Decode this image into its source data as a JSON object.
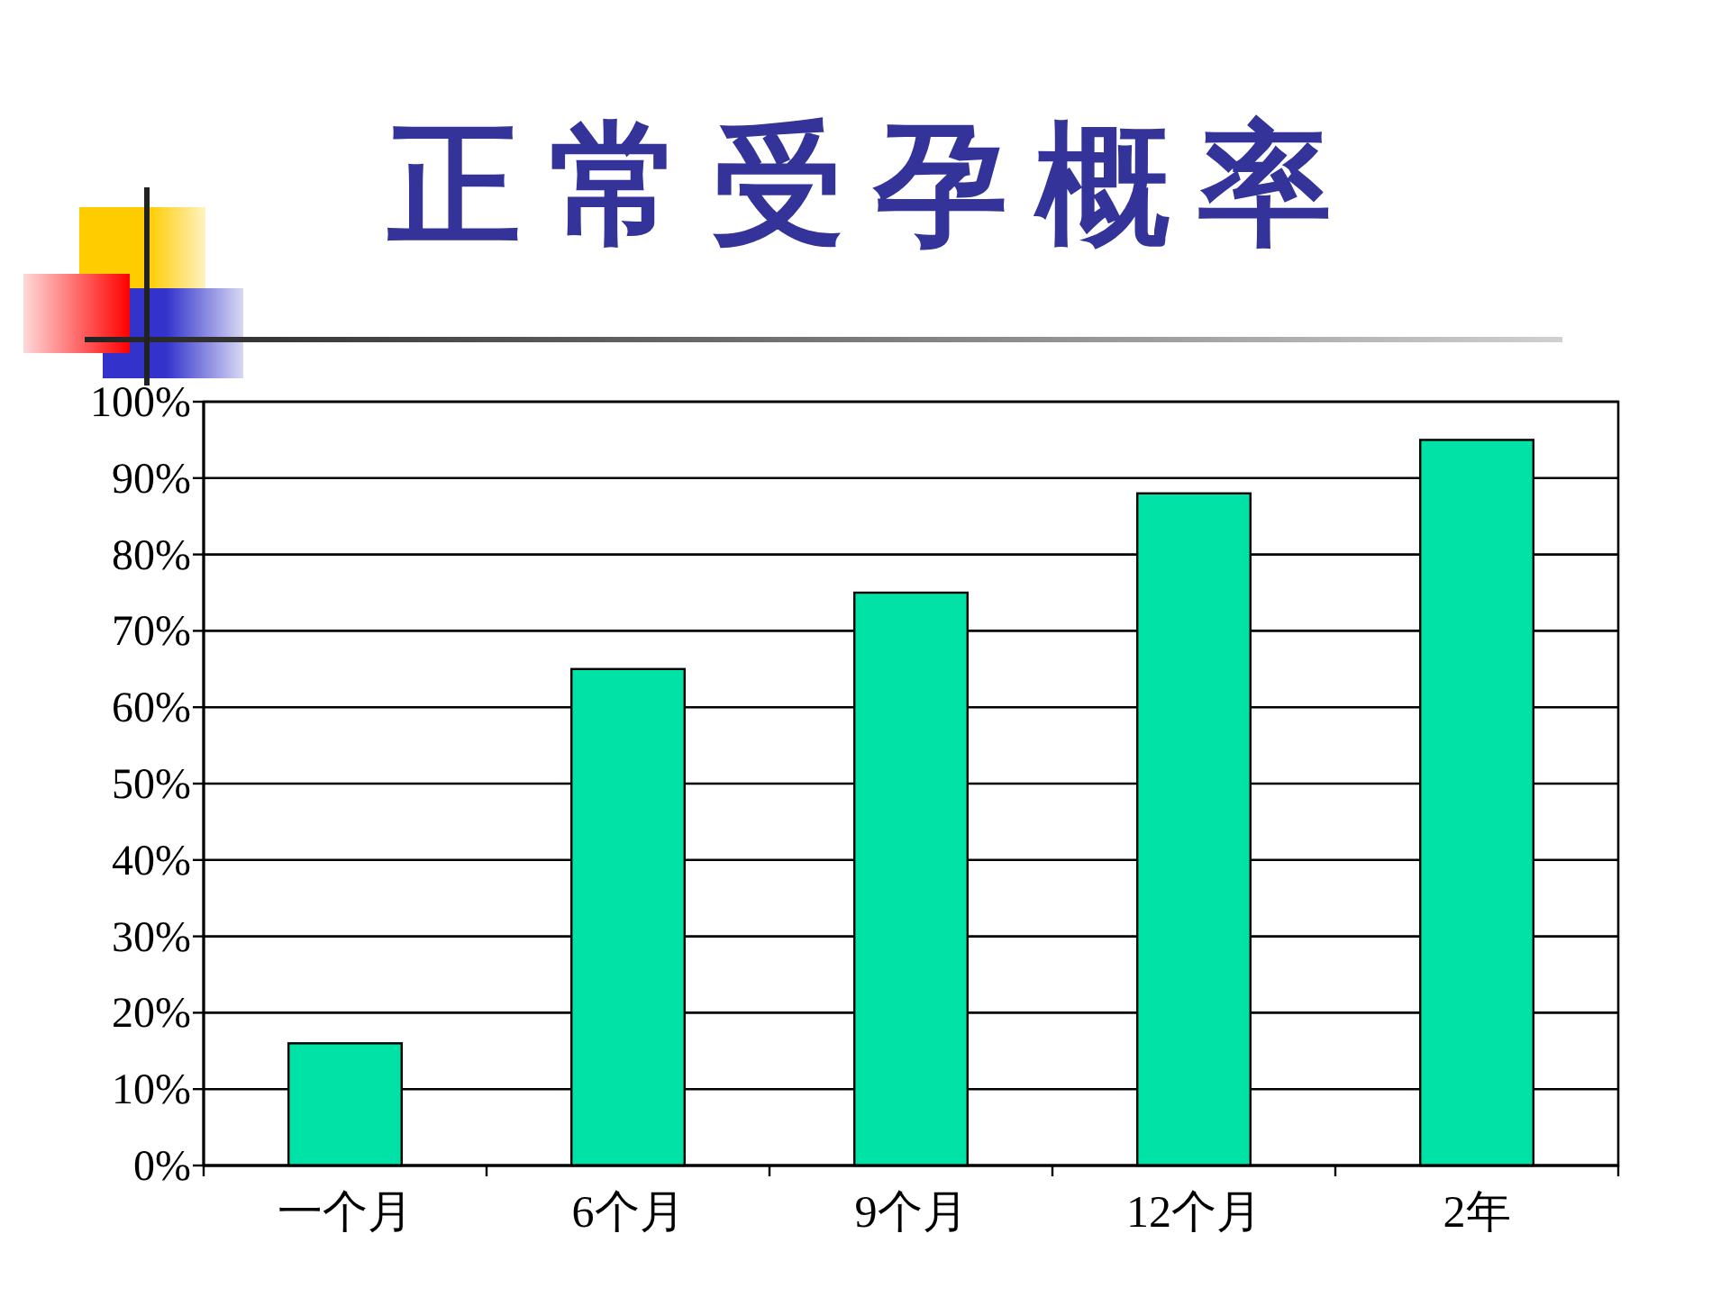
{
  "chart_data": {
    "type": "bar",
    "title": "正常受孕概率",
    "categories": [
      "一个月",
      "6个月",
      "9个月",
      "12个月",
      "2年"
    ],
    "values": [
      16,
      65,
      75,
      88,
      95
    ],
    "color": "#00e2a6",
    "ylim": [
      0,
      100
    ],
    "yticks": [
      {
        "value": 0,
        "label": "0%"
      },
      {
        "value": 10,
        "label": "10%"
      },
      {
        "value": 20,
        "label": "20%"
      },
      {
        "value": 30,
        "label": "30%"
      },
      {
        "value": 40,
        "label": "40%"
      },
      {
        "value": 50,
        "label": "50%"
      },
      {
        "value": 60,
        "label": "60%"
      },
      {
        "value": 70,
        "label": "70%"
      },
      {
        "value": 80,
        "label": "80%"
      },
      {
        "value": 90,
        "label": "90%"
      },
      {
        "value": 100,
        "label": "100%"
      }
    ],
    "grid": "y"
  }
}
